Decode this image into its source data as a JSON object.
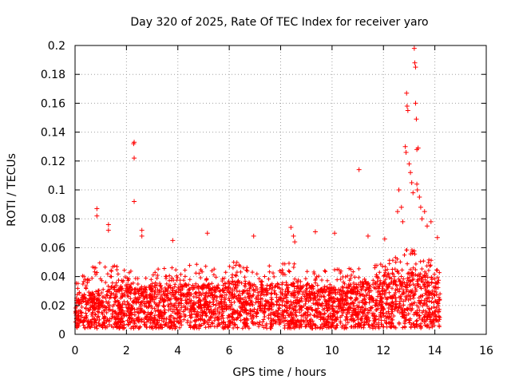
{
  "chart_data": {
    "type": "scatter",
    "title": "Day 320 of 2025, Rate Of TEC Index for receiver yaro",
    "xlabel": "GPS time / hours",
    "ylabel": "ROTI / TECUs",
    "xlim": [
      0,
      16
    ],
    "ylim": [
      0,
      0.2
    ],
    "xticks": [
      0,
      2,
      4,
      6,
      8,
      10,
      12,
      14,
      16
    ],
    "yticks": [
      0,
      0.02,
      0.04,
      0.06,
      0.08,
      0.1,
      0.12,
      0.14,
      0.16,
      0.18,
      0.2
    ],
    "ytick_labels": [
      "0",
      "0.02",
      "0.04",
      "0.06",
      "0.08",
      "0.1",
      "0.12",
      "0.14",
      "0.16",
      "0.18",
      "0.2"
    ],
    "grid": true,
    "marker": "+",
    "color": "#ff0000",
    "series": [
      {
        "name": "ROTI",
        "envelope": {
          "x": [
            0,
            0.5,
            1,
            1.5,
            2,
            2.5,
            3,
            3.5,
            4,
            4.5,
            5,
            5.5,
            6,
            6.5,
            7,
            7.5,
            8,
            8.5,
            9,
            9.5,
            10,
            10.5,
            11,
            11.5,
            12,
            12.5,
            13,
            13.5,
            14,
            14.2
          ],
          "base": [
            0.012,
            0.016,
            0.018,
            0.019,
            0.019,
            0.018,
            0.019,
            0.019,
            0.018,
            0.02,
            0.019,
            0.02,
            0.021,
            0.021,
            0.02,
            0.019,
            0.02,
            0.022,
            0.019,
            0.018,
            0.018,
            0.019,
            0.02,
            0.021,
            0.024,
            0.026,
            0.026,
            0.024,
            0.022,
            0.02
          ],
          "upper": [
            0.036,
            0.045,
            0.05,
            0.048,
            0.046,
            0.047,
            0.047,
            0.046,
            0.048,
            0.05,
            0.05,
            0.048,
            0.05,
            0.05,
            0.048,
            0.047,
            0.05,
            0.055,
            0.045,
            0.044,
            0.045,
            0.046,
            0.048,
            0.05,
            0.05,
            0.055,
            0.06,
            0.055,
            0.05,
            0.045
          ]
        },
        "outliers": [
          {
            "x": 0.85,
            "y": 0.087
          },
          {
            "x": 0.85,
            "y": 0.082
          },
          {
            "x": 1.3,
            "y": 0.076
          },
          {
            "x": 1.3,
            "y": 0.072
          },
          {
            "x": 2.3,
            "y": 0.133
          },
          {
            "x": 2.28,
            "y": 0.132
          },
          {
            "x": 2.3,
            "y": 0.122
          },
          {
            "x": 2.3,
            "y": 0.092
          },
          {
            "x": 2.6,
            "y": 0.072
          },
          {
            "x": 2.6,
            "y": 0.068
          },
          {
            "x": 3.8,
            "y": 0.065
          },
          {
            "x": 5.15,
            "y": 0.07
          },
          {
            "x": 6.95,
            "y": 0.068
          },
          {
            "x": 8.4,
            "y": 0.074
          },
          {
            "x": 8.5,
            "y": 0.068
          },
          {
            "x": 8.55,
            "y": 0.064
          },
          {
            "x": 9.35,
            "y": 0.071
          },
          {
            "x": 10.1,
            "y": 0.07
          },
          {
            "x": 11.05,
            "y": 0.114
          },
          {
            "x": 11.4,
            "y": 0.068
          },
          {
            "x": 12.05,
            "y": 0.066
          },
          {
            "x": 12.55,
            "y": 0.085
          },
          {
            "x": 12.6,
            "y": 0.1
          },
          {
            "x": 12.7,
            "y": 0.088
          },
          {
            "x": 12.75,
            "y": 0.078
          },
          {
            "x": 12.85,
            "y": 0.13
          },
          {
            "x": 12.88,
            "y": 0.126
          },
          {
            "x": 12.9,
            "y": 0.167
          },
          {
            "x": 12.92,
            "y": 0.158
          },
          {
            "x": 12.95,
            "y": 0.155
          },
          {
            "x": 13.0,
            "y": 0.118
          },
          {
            "x": 13.05,
            "y": 0.112
          },
          {
            "x": 13.1,
            "y": 0.105
          },
          {
            "x": 13.15,
            "y": 0.098
          },
          {
            "x": 13.2,
            "y": 0.198
          },
          {
            "x": 13.22,
            "y": 0.188
          },
          {
            "x": 13.25,
            "y": 0.185
          },
          {
            "x": 13.25,
            "y": 0.16
          },
          {
            "x": 13.28,
            "y": 0.149
          },
          {
            "x": 13.3,
            "y": 0.128
          },
          {
            "x": 13.35,
            "y": 0.129
          },
          {
            "x": 13.3,
            "y": 0.104
          },
          {
            "x": 13.32,
            "y": 0.1
          },
          {
            "x": 13.4,
            "y": 0.095
          },
          {
            "x": 13.45,
            "y": 0.088
          },
          {
            "x": 13.5,
            "y": 0.08
          },
          {
            "x": 13.6,
            "y": 0.085
          },
          {
            "x": 13.7,
            "y": 0.075
          },
          {
            "x": 13.85,
            "y": 0.078
          },
          {
            "x": 14.1,
            "y": 0.067
          }
        ]
      }
    ]
  }
}
